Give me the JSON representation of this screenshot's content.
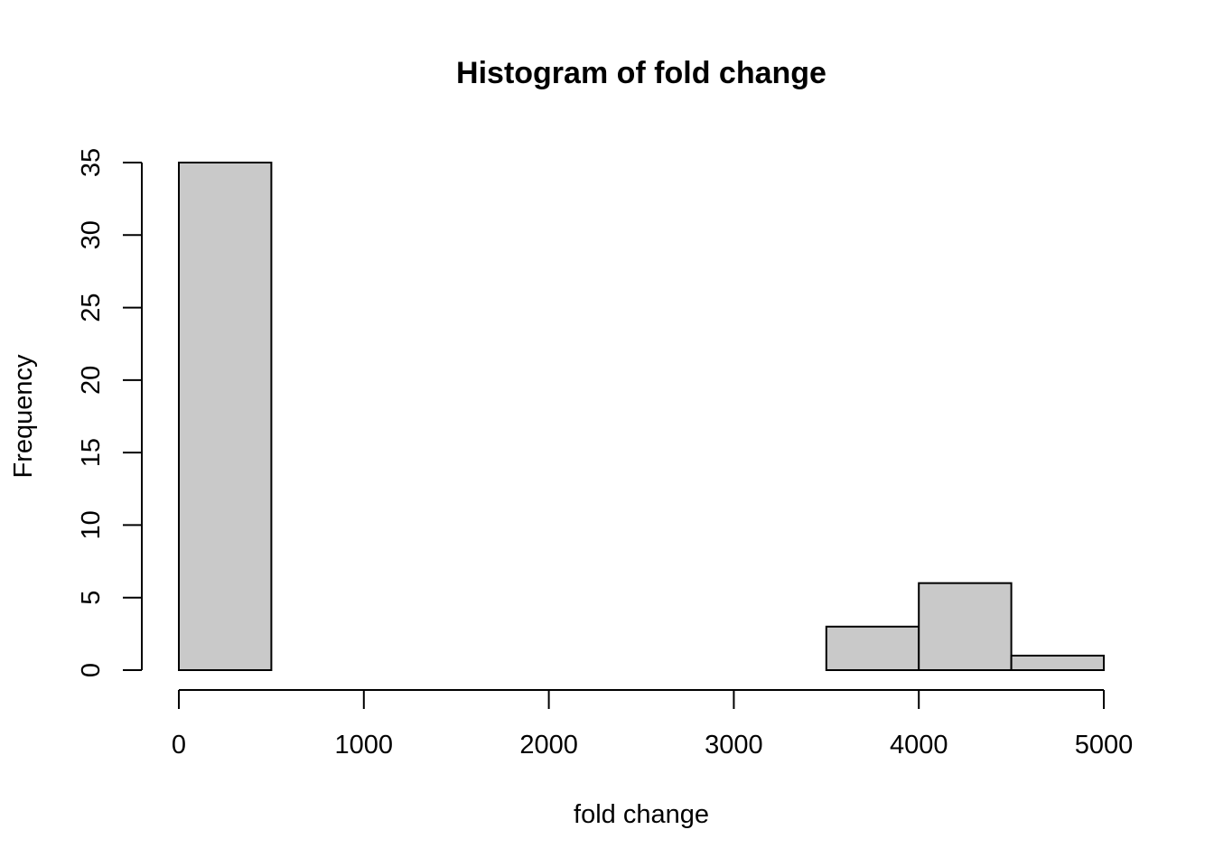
{
  "chart_data": {
    "type": "bar",
    "subtype": "histogram",
    "title": "Histogram of fold change",
    "xlabel": "fold change",
    "ylabel": "Frequency",
    "bins": [
      {
        "start": 0,
        "end": 500,
        "value": 35
      },
      {
        "start": 500,
        "end": 1000,
        "value": 0
      },
      {
        "start": 1000,
        "end": 1500,
        "value": 0
      },
      {
        "start": 1500,
        "end": 2000,
        "value": 0
      },
      {
        "start": 2000,
        "end": 2500,
        "value": 0
      },
      {
        "start": 2500,
        "end": 3000,
        "value": 0
      },
      {
        "start": 3000,
        "end": 3500,
        "value": 0
      },
      {
        "start": 3500,
        "end": 4000,
        "value": 3
      },
      {
        "start": 4000,
        "end": 4500,
        "value": 6
      },
      {
        "start": 4500,
        "end": 5000,
        "value": 1
      }
    ],
    "xlim": [
      0,
      5000
    ],
    "ylim": [
      0,
      35
    ],
    "x_ticks": [
      0,
      1000,
      2000,
      3000,
      4000,
      5000
    ],
    "y_ticks": [
      0,
      5,
      10,
      15,
      20,
      25,
      30,
      35
    ],
    "bar_color": "#c9c9c9",
    "edge_color": "#000000",
    "grid": false,
    "legend": "none"
  }
}
